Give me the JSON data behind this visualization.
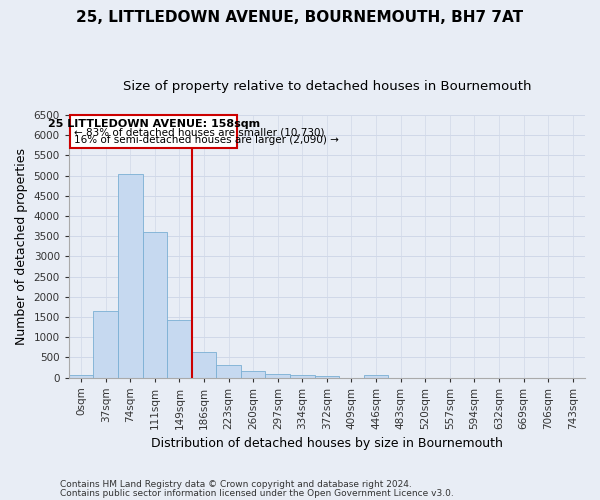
{
  "title": "25, LITTLEDOWN AVENUE, BOURNEMOUTH, BH7 7AT",
  "subtitle": "Size of property relative to detached houses in Bournemouth",
  "xlabel": "Distribution of detached houses by size in Bournemouth",
  "ylabel": "Number of detached properties",
  "footnote1": "Contains HM Land Registry data © Crown copyright and database right 2024.",
  "footnote2": "Contains public sector information licensed under the Open Government Licence v3.0.",
  "bar_labels": [
    "0sqm",
    "37sqm",
    "74sqm",
    "111sqm",
    "149sqm",
    "186sqm",
    "223sqm",
    "260sqm",
    "297sqm",
    "334sqm",
    "372sqm",
    "409sqm",
    "446sqm",
    "483sqm",
    "520sqm",
    "557sqm",
    "594sqm",
    "632sqm",
    "669sqm",
    "706sqm",
    "743sqm"
  ],
  "bar_values": [
    70,
    1650,
    5050,
    3600,
    1430,
    620,
    300,
    150,
    80,
    55,
    40,
    0,
    50,
    0,
    0,
    0,
    0,
    0,
    0,
    0,
    0
  ],
  "bar_color": "#c6d9f0",
  "bar_edge_color": "#7bafd4",
  "grid_color": "#d0d8e8",
  "background_color": "#e8edf5",
  "property_label": "25 LITTLEDOWN AVENUE: 158sqm",
  "annotation_line1": "← 83% of detached houses are smaller (10,730)",
  "annotation_line2": "16% of semi-detached houses are larger (2,090) →",
  "vline_color": "#cc0000",
  "box_edge_color": "#cc0000",
  "ylim": [
    0,
    6500
  ],
  "yticks": [
    0,
    500,
    1000,
    1500,
    2000,
    2500,
    3000,
    3500,
    4000,
    4500,
    5000,
    5500,
    6000,
    6500
  ],
  "title_fontsize": 11,
  "subtitle_fontsize": 9.5,
  "axis_label_fontsize": 9,
  "tick_fontsize": 7.5,
  "footnote_fontsize": 6.5,
  "annotation_fontsize": 8,
  "vline_x": 4.5
}
